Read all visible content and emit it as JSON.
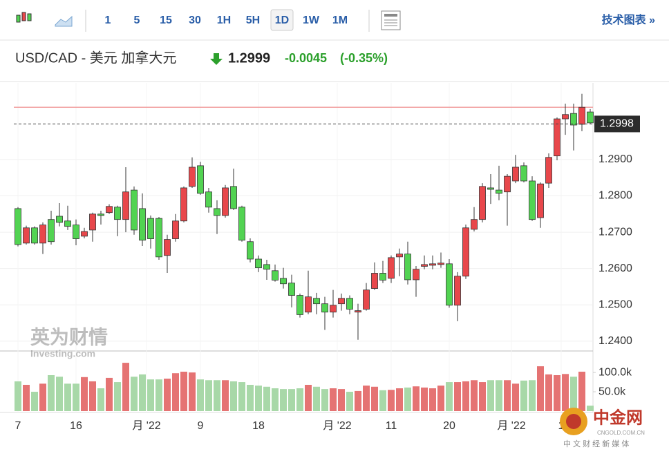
{
  "toolbar": {
    "intervals": [
      "1",
      "5",
      "15",
      "30",
      "1H",
      "5H",
      "1D",
      "1W",
      "1M"
    ],
    "active_interval_index": 6,
    "link": "技术图表 »"
  },
  "header": {
    "symbol": "USD/CAD - 美元 加拿大元",
    "price": "1.2999",
    "change": "-0.0045",
    "change_pct": "(-0.35%)"
  },
  "watermark": {
    "brand": "英为财情",
    "site": "Investing.com",
    "logo": "中金网",
    "logo_site": "CNGOLD.COM.CN",
    "logo_tagline": "中 文 财 经 新 媒 体"
  },
  "chart_data": {
    "type": "candlestick",
    "up_color": "#e8474b",
    "down_color": "#52d352",
    "volume_up_color": "#e57373",
    "volume_down_color": "#a8d8a8",
    "open": [
      1.2765,
      1.267,
      1.2712,
      1.267,
      1.2735,
      1.2744,
      1.2731,
      1.272,
      1.2689,
      1.2706,
      1.275,
      1.2754,
      1.2769,
      1.2735,
      1.2816,
      1.2765,
      1.2738,
      1.2738,
      1.2636,
      1.2682,
      1.2731,
      1.2826,
      1.2883,
      1.2811,
      1.2765,
      1.2746,
      1.2826,
      1.2769,
      1.2674,
      1.2626,
      1.2611,
      1.2594,
      1.2573,
      1.256,
      1.2526,
      1.248,
      1.2518,
      1.2503,
      1.248,
      1.2503,
      1.2518,
      1.248,
      1.2488,
      1.2545,
      1.2587,
      1.2573,
      1.2632,
      1.264,
      1.2569,
      1.2606,
      1.2609,
      1.2611,
      1.2613,
      1.2499,
      1.2579,
      1.2708,
      1.2735,
      1.2822,
      1.2816,
      1.2811,
      1.2841,
      1.2883,
      1.2841,
      1.274,
      1.2835,
      1.291,
      1.3012,
      1.3027,
      1.2997,
      1.3031
    ],
    "high": [
      1.2769,
      1.2718,
      1.2716,
      1.2727,
      1.2759,
      1.278,
      1.2773,
      1.2735,
      1.2712,
      1.2754,
      1.2759,
      1.2777,
      1.2773,
      1.2879,
      1.2826,
      1.2807,
      1.2746,
      1.2742,
      1.2693,
      1.275,
      1.2826,
      1.2906,
      1.2894,
      1.2822,
      1.2788,
      1.283,
      1.2875,
      1.2773,
      1.2683,
      1.2636,
      1.2624,
      1.2611,
      1.2602,
      1.2583,
      1.2531,
      1.2594,
      1.2533,
      1.2522,
      1.2541,
      1.2531,
      1.2526,
      1.2503,
      1.256,
      1.2617,
      1.2621,
      1.2636,
      1.2655,
      1.2674,
      1.2607,
      1.2636,
      1.2636,
      1.2644,
      1.2626,
      1.259,
      1.2721,
      1.2769,
      1.2835,
      1.286,
      1.2883,
      1.286,
      1.2913,
      1.2892,
      1.2854,
      1.2837,
      1.2917,
      1.3016,
      1.3054,
      1.3054,
      1.3081,
      1.3039
    ],
    "low": [
      1.2661,
      1.2666,
      1.2666,
      1.264,
      1.2666,
      1.2716,
      1.2706,
      1.2664,
      1.2683,
      1.2674,
      1.2721,
      1.275,
      1.2689,
      1.27,
      1.2693,
      1.2662,
      1.2655,
      1.2624,
      1.2588,
      1.2674,
      1.2727,
      1.2822,
      1.2803,
      1.2754,
      1.2695,
      1.274,
      1.2761,
      1.2674,
      1.2617,
      1.259,
      1.2569,
      1.2564,
      1.2545,
      1.2493,
      1.2465,
      1.2474,
      1.2474,
      1.2431,
      1.2465,
      1.2484,
      1.2474,
      1.2404,
      1.2484,
      1.2541,
      1.256,
      1.256,
      1.2579,
      1.2556,
      1.2522,
      1.2598,
      1.2598,
      1.2602,
      1.2492,
      1.2455,
      1.2571,
      1.2702,
      1.2727,
      1.2778,
      1.2788,
      1.2718,
      1.2835,
      1.2837,
      1.2731,
      1.2712,
      1.2822,
      1.2898,
      1.2968,
      1.2925,
      1.2978,
      1.2997
    ],
    "close": [
      1.2666,
      1.2712,
      1.267,
      1.272,
      1.2674,
      1.2727,
      1.2716,
      1.2682,
      1.2702,
      1.275,
      1.2746,
      1.2771,
      1.2735,
      1.2811,
      1.2706,
      1.2678,
      1.2682,
      1.2632,
      1.268,
      1.2731,
      1.2822,
      1.2879,
      1.2807,
      1.2769,
      1.2746,
      1.2822,
      1.2765,
      1.2678,
      1.2626,
      1.2602,
      1.2598,
      1.2568,
      1.2558,
      1.2526,
      1.2473,
      1.2522,
      1.2503,
      1.248,
      1.2499,
      1.2518,
      1.2488,
      1.2484,
      1.2541,
      1.2587,
      1.2568,
      1.263,
      1.264,
      1.2569,
      1.2598,
      1.2611,
      1.2613,
      1.2615,
      1.2499,
      1.2579,
      1.2712,
      1.2735,
      1.2826,
      1.2818,
      1.2807,
      1.2854,
      1.2879,
      1.2841,
      1.2735,
      1.2833,
      1.2906,
      1.3012,
      1.3024,
      1.2995,
      1.3044,
      1.3001
    ],
    "volume": [
      77000,
      68000,
      50000,
      71000,
      93000,
      89000,
      71000,
      71000,
      88000,
      77000,
      59000,
      86000,
      75000,
      125000,
      89000,
      95000,
      82000,
      82000,
      84000,
      98000,
      102000,
      100000,
      82000,
      80000,
      80000,
      80000,
      77000,
      75000,
      68000,
      66000,
      63000,
      59000,
      57000,
      57000,
      59000,
      68000,
      63000,
      57000,
      59000,
      57000,
      50000,
      52000,
      66000,
      63000,
      54000,
      55000,
      59000,
      61000,
      64000,
      61000,
      59000,
      66000,
      75000,
      75000,
      77000,
      80000,
      75000,
      80000,
      80000,
      80000,
      71000,
      79000,
      80000,
      116000,
      95000,
      93000,
      96000,
      89000,
      102000,
      14000
    ],
    "ylim": [
      1.2373,
      1.3111
    ],
    "yticks": [
      {
        "value": 1.24,
        "label": "1.2400"
      },
      {
        "value": 1.25,
        "label": "1.2500"
      },
      {
        "value": 1.26,
        "label": "1.2600"
      },
      {
        "value": 1.27,
        "label": "1.2700"
      },
      {
        "value": 1.28,
        "label": "1.2800"
      },
      {
        "value": 1.29,
        "label": "1.2900"
      }
    ],
    "volume_ylim": [
      0,
      152000
    ],
    "volume_ticks": [
      {
        "value": 50000,
        "label": "50.0k"
      },
      {
        "value": 100000,
        "label": "100.0k"
      }
    ],
    "xticks": [
      {
        "value": 0,
        "label": "7"
      },
      {
        "value": 7,
        "label": "16"
      },
      {
        "value": 15.5,
        "label": "月 '22"
      },
      {
        "value": 22,
        "label": "9"
      },
      {
        "value": 29,
        "label": "18"
      },
      {
        "value": 38.5,
        "label": "月 '22"
      },
      {
        "value": 45,
        "label": "11"
      },
      {
        "value": 52,
        "label": "20"
      },
      {
        "value": 59.5,
        "label": "月 '22"
      },
      {
        "value": 65.5,
        "label": "1"
      }
    ],
    "last_price": {
      "value": 1.2998,
      "label": "1.2998"
    },
    "reference_line": 1.3044,
    "grid": true
  }
}
